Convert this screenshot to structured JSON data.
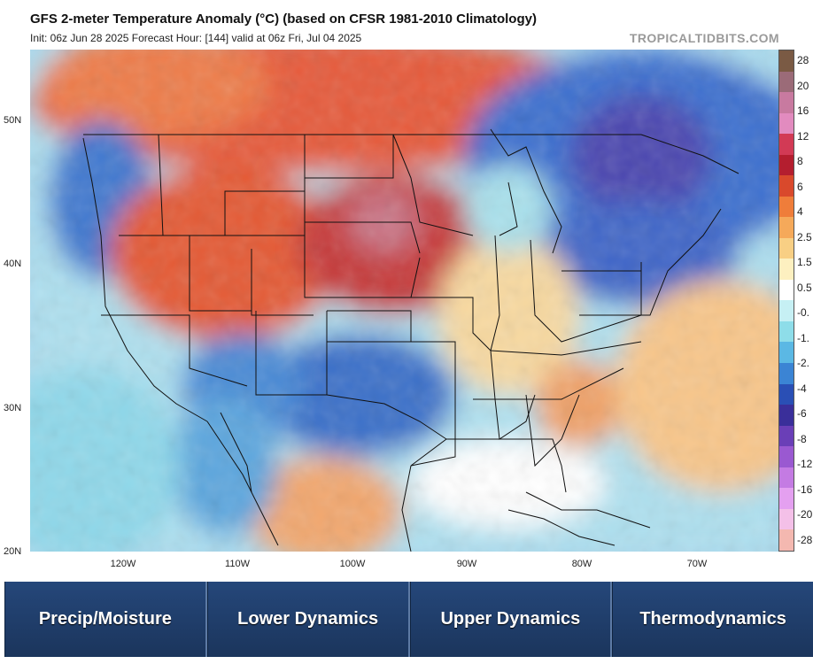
{
  "header": {
    "title": "GFS 2-meter Temperature Anomaly (°C) (based on CFSR 1981-2010 Climatology)",
    "subtitle": "Init: 06z Jun 28 2025   Forecast Hour: [144]   valid at 06z Fri, Jul 04 2025",
    "brand": "TROPICALTIDBITS.COM"
  },
  "map": {
    "lat_labels": [
      "50N",
      "40N",
      "30N",
      "20N"
    ],
    "lon_labels": [
      "120W",
      "110W",
      "100W",
      "90W",
      "80W",
      "70W"
    ]
  },
  "colorbar": {
    "labels": [
      "28",
      "20",
      "16",
      "12",
      "8",
      "6",
      "4",
      "2.5",
      "1.5",
      "0.5",
      "-0.",
      "-1.",
      "-2.",
      "-4",
      "-6",
      "-8",
      "-12",
      "-16",
      "-20",
      "-28"
    ],
    "colors": [
      "#7a5a44",
      "#9b6b78",
      "#c87aa0",
      "#e28bbf",
      "#d23a55",
      "#b41e2f",
      "#d9492c",
      "#ef7d3a",
      "#f5a95a",
      "#f8cf84",
      "#fdf0c0",
      "#ffffff",
      "#c6f0f4",
      "#8edde9",
      "#5bb8e4",
      "#3b84d4",
      "#2a4fb5",
      "#3a2f9a",
      "#6a3fb7",
      "#9a59d1",
      "#c47be3",
      "#e4a0f0",
      "#f4c0e8",
      "#f4b8b0"
    ]
  },
  "tabs": [
    {
      "label": "Precip/Moisture"
    },
    {
      "label": "Lower Dynamics"
    },
    {
      "label": "Upper Dynamics"
    },
    {
      "label": "Thermodynamics"
    }
  ]
}
